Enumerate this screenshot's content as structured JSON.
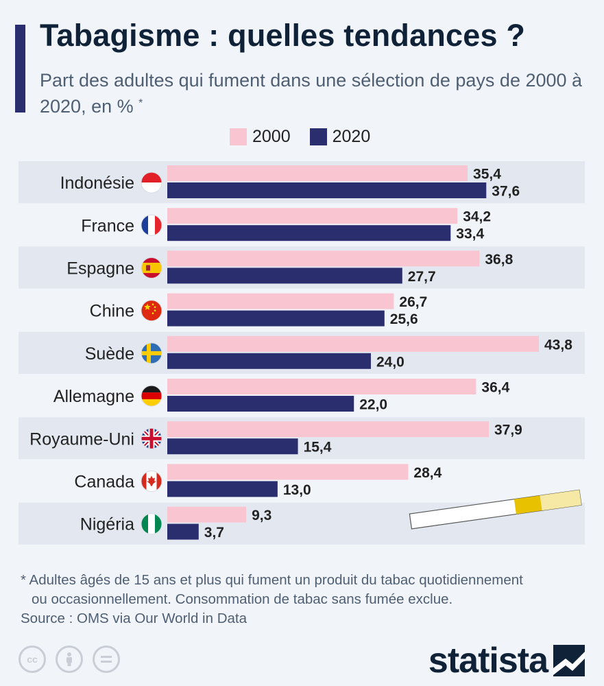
{
  "header": {
    "title": "Tabagisme : quelles tendances ?",
    "subtitle": "Part des adultes qui fument dans une sélection de pays de 2000 à 2020, en %",
    "subtitle_mark": "*"
  },
  "legend": [
    {
      "label": "2000",
      "color": "#f9c5d1"
    },
    {
      "label": "2020",
      "color": "#2a2d6e"
    }
  ],
  "chart_data": {
    "type": "bar",
    "orientation": "horizontal",
    "categories": [
      "Indonésie",
      "France",
      "Espagne",
      "Chine",
      "Suède",
      "Allemagne",
      "Royaume-Uni",
      "Canada",
      "Nigéria"
    ],
    "flag_icons": [
      "indonesia-flag",
      "france-flag",
      "spain-flag",
      "china-flag",
      "sweden-flag",
      "germany-flag",
      "uk-flag",
      "canada-flag",
      "nigeria-flag"
    ],
    "series": [
      {
        "name": "2000",
        "color": "#f9c5d1",
        "values": [
          35.4,
          34.2,
          36.8,
          26.7,
          43.8,
          36.4,
          37.9,
          28.4,
          9.3
        ],
        "labels": [
          "35,4",
          "34,2",
          "36,8",
          "26,7",
          "43,8",
          "36,4",
          "37,9",
          "28,4",
          "9,3"
        ]
      },
      {
        "name": "2020",
        "color": "#2a2d6e",
        "values": [
          37.6,
          33.4,
          27.7,
          25.6,
          24.0,
          22.0,
          15.4,
          13.0,
          3.7
        ],
        "labels": [
          "37,6",
          "33,4",
          "27,7",
          "25,6",
          "24,0",
          "22,0",
          "15,4",
          "13,0",
          "3,7"
        ]
      }
    ],
    "xlim": [
      0,
      43.8
    ],
    "grid": false
  },
  "footer": {
    "footnote_line1": "* Adultes âgés de 15 ans et plus qui fument un produit du tabac quotidiennement",
    "footnote_line2": "ou occasionnellement. Consommation de tabac sans fumée exclue.",
    "source": "Source : OMS via Our World in Data",
    "brand": "statista",
    "license_icons": [
      "cc-icon",
      "attribution-icon",
      "no-derivatives-icon"
    ]
  }
}
